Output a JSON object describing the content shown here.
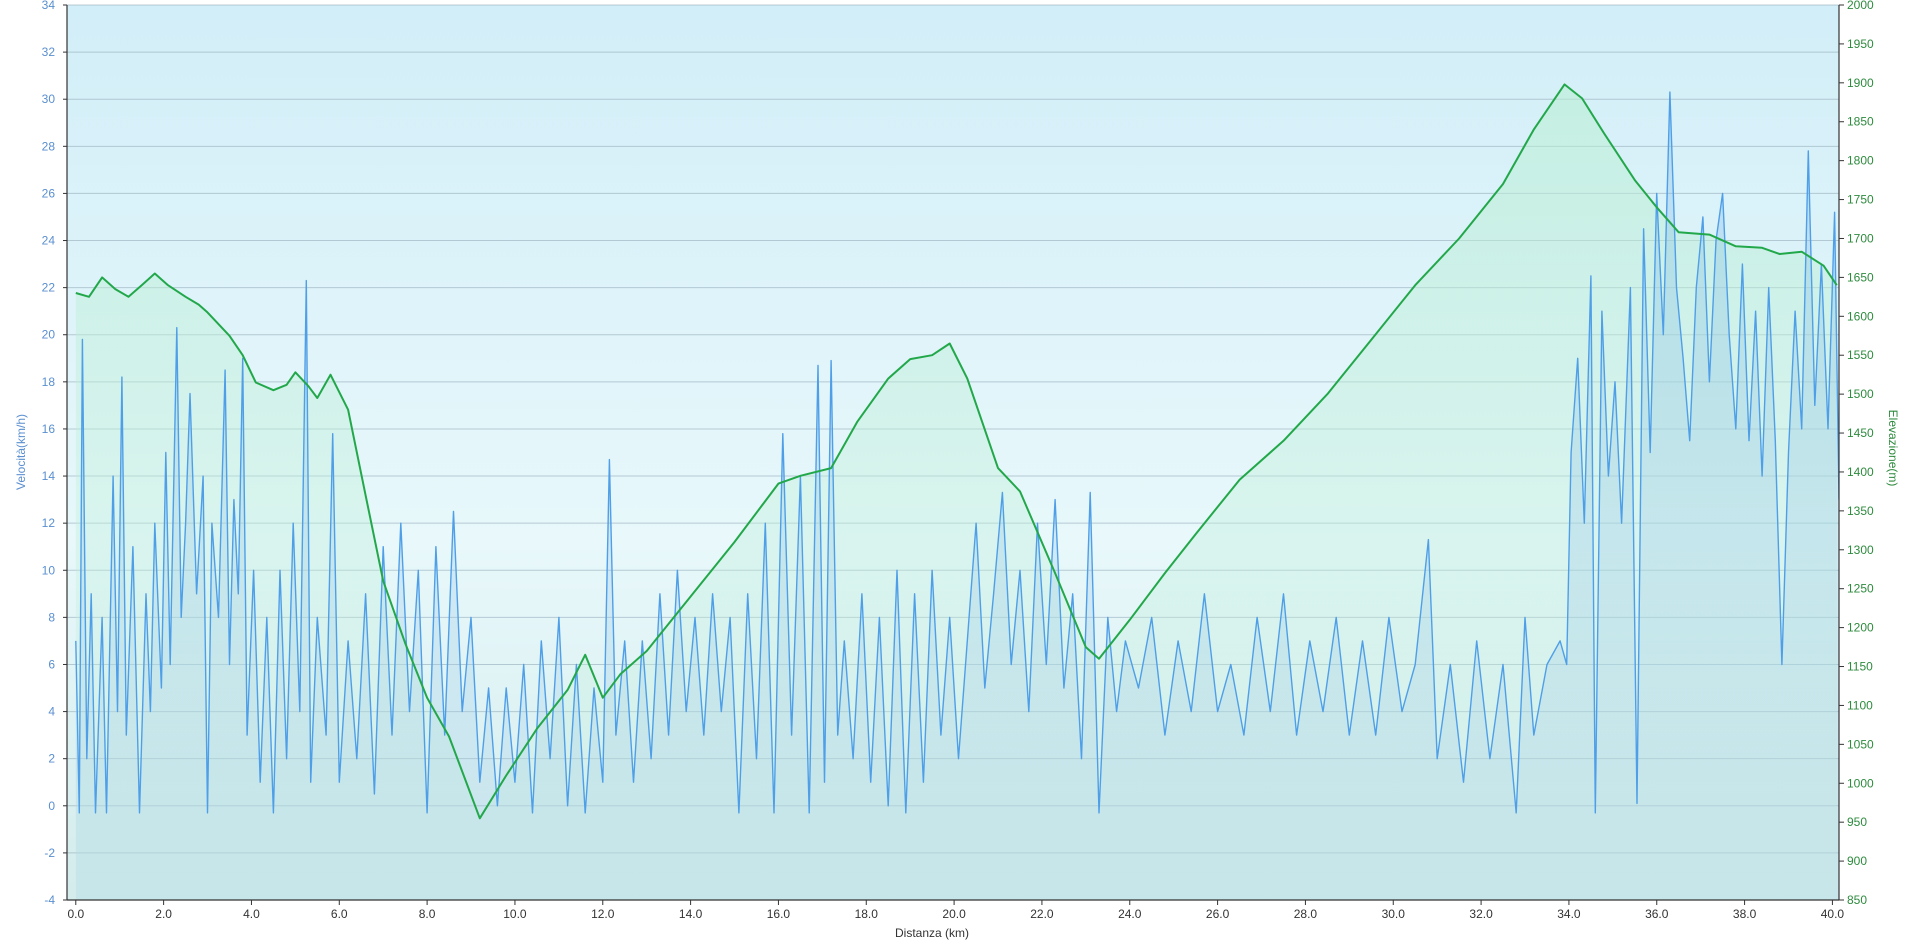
{
  "chart_data": {
    "type": "line",
    "xlabel": "Distanza  (km)",
    "ylabel_left": "Velocità(km/h)",
    "ylabel_right": "Elevazione(m)",
    "xlim": [
      -0.2,
      40.15
    ],
    "ylim_left": [
      -4,
      34
    ],
    "ylim_right": [
      850,
      2000
    ],
    "x_ticks": [
      0,
      2,
      4,
      6,
      8,
      10,
      12,
      14,
      16,
      18,
      20,
      22,
      24,
      26,
      28,
      30,
      32,
      34,
      36,
      38,
      40
    ],
    "y_left_ticks": [
      -4,
      -2,
      0,
      2,
      4,
      6,
      8,
      10,
      12,
      14,
      16,
      18,
      20,
      22,
      24,
      26,
      28,
      30,
      32,
      34
    ],
    "y_right_ticks": [
      850,
      900,
      950,
      1000,
      1050,
      1100,
      1150,
      1200,
      1250,
      1300,
      1350,
      1400,
      1450,
      1500,
      1550,
      1600,
      1650,
      1700,
      1750,
      1800,
      1850,
      1900,
      1950,
      2000
    ],
    "grid": true,
    "colors": {
      "speed": "#4f9fe8",
      "elevation": "#22a84a",
      "left_axis_text": "#5a8fd0",
      "right_axis_text": "#2e8b3e",
      "grid": "#9fb6c2",
      "background_top": "#d2eef8",
      "background_bottom": "#d4ecec"
    },
    "series": [
      {
        "axis": "right",
        "points": [
          [
            0,
            1630
          ],
          [
            0.3,
            1625
          ],
          [
            0.6,
            1650
          ],
          [
            0.9,
            1635
          ],
          [
            1.2,
            1625
          ],
          [
            1.5,
            1640
          ],
          [
            1.8,
            1655
          ],
          [
            2.1,
            1640
          ],
          [
            2.5,
            1625
          ],
          [
            2.8,
            1615
          ],
          [
            3.0,
            1605
          ],
          [
            3.5,
            1575
          ],
          [
            3.8,
            1550
          ],
          [
            4.1,
            1515
          ],
          [
            4.5,
            1505
          ],
          [
            4.8,
            1512
          ],
          [
            5.0,
            1528
          ],
          [
            5.3,
            1510
          ],
          [
            5.5,
            1495
          ],
          [
            5.8,
            1525
          ],
          [
            6.2,
            1480
          ],
          [
            6.6,
            1370
          ],
          [
            7.0,
            1260
          ],
          [
            7.5,
            1180
          ],
          [
            8.0,
            1110
          ],
          [
            8.5,
            1060
          ],
          [
            9.2,
            955
          ],
          [
            9.8,
            1010
          ],
          [
            10.5,
            1070
          ],
          [
            11.2,
            1120
          ],
          [
            11.6,
            1165
          ],
          [
            12.0,
            1110
          ],
          [
            12.4,
            1140
          ],
          [
            13.0,
            1170
          ],
          [
            14.0,
            1240
          ],
          [
            15.0,
            1310
          ],
          [
            16.0,
            1385
          ],
          [
            16.5,
            1395
          ],
          [
            17.2,
            1405
          ],
          [
            17.8,
            1465
          ],
          [
            18.5,
            1520
          ],
          [
            19.0,
            1545
          ],
          [
            19.5,
            1550
          ],
          [
            19.9,
            1565
          ],
          [
            20.3,
            1520
          ],
          [
            21.0,
            1405
          ],
          [
            21.5,
            1375
          ],
          [
            22.3,
            1270
          ],
          [
            23.0,
            1175
          ],
          [
            23.3,
            1160
          ],
          [
            24.0,
            1210
          ],
          [
            24.8,
            1270
          ],
          [
            25.5,
            1320
          ],
          [
            26.5,
            1390
          ],
          [
            27.5,
            1440
          ],
          [
            28.5,
            1500
          ],
          [
            29.5,
            1570
          ],
          [
            30.5,
            1640
          ],
          [
            31.5,
            1700
          ],
          [
            32.5,
            1770
          ],
          [
            33.2,
            1840
          ],
          [
            33.9,
            1898
          ],
          [
            34.3,
            1880
          ],
          [
            34.8,
            1835
          ],
          [
            35.5,
            1775
          ],
          [
            36.0,
            1740
          ],
          [
            36.5,
            1708
          ],
          [
            37.2,
            1705
          ],
          [
            37.8,
            1690
          ],
          [
            38.4,
            1688
          ],
          [
            38.8,
            1680
          ],
          [
            39.3,
            1683
          ],
          [
            39.8,
            1665
          ],
          [
            40.1,
            1640
          ]
        ]
      },
      {
        "axis": "left",
        "points": [
          [
            0,
            7
          ],
          [
            0.08,
            -0.3
          ],
          [
            0.15,
            19.8
          ],
          [
            0.25,
            2
          ],
          [
            0.35,
            9
          ],
          [
            0.45,
            -0.3
          ],
          [
            0.6,
            8
          ],
          [
            0.7,
            -0.3
          ],
          [
            0.85,
            14
          ],
          [
            0.95,
            4
          ],
          [
            1.05,
            18.2
          ],
          [
            1.15,
            3
          ],
          [
            1.3,
            11
          ],
          [
            1.45,
            -0.3
          ],
          [
            1.6,
            9
          ],
          [
            1.7,
            4
          ],
          [
            1.8,
            12
          ],
          [
            1.95,
            5
          ],
          [
            2.05,
            15
          ],
          [
            2.15,
            6
          ],
          [
            2.3,
            20.3
          ],
          [
            2.4,
            8
          ],
          [
            2.5,
            12
          ],
          [
            2.6,
            17.5
          ],
          [
            2.75,
            9
          ],
          [
            2.9,
            14
          ],
          [
            3.0,
            -0.3
          ],
          [
            3.1,
            12
          ],
          [
            3.25,
            8
          ],
          [
            3.4,
            18.5
          ],
          [
            3.5,
            6
          ],
          [
            3.6,
            13
          ],
          [
            3.7,
            9
          ],
          [
            3.8,
            19
          ],
          [
            3.9,
            3
          ],
          [
            4.05,
            10
          ],
          [
            4.2,
            1
          ],
          [
            4.35,
            8
          ],
          [
            4.5,
            -0.3
          ],
          [
            4.65,
            10
          ],
          [
            4.8,
            2
          ],
          [
            4.95,
            12
          ],
          [
            5.1,
            4
          ],
          [
            5.25,
            22.3
          ],
          [
            5.35,
            1
          ],
          [
            5.5,
            8
          ],
          [
            5.7,
            3
          ],
          [
            5.85,
            15.8
          ],
          [
            6.0,
            1
          ],
          [
            6.2,
            7
          ],
          [
            6.4,
            2
          ],
          [
            6.6,
            9
          ],
          [
            6.8,
            0.5
          ],
          [
            7.0,
            11
          ],
          [
            7.2,
            3
          ],
          [
            7.4,
            12
          ],
          [
            7.6,
            4
          ],
          [
            7.8,
            10
          ],
          [
            8.0,
            -0.3
          ],
          [
            8.2,
            11
          ],
          [
            8.4,
            3
          ],
          [
            8.6,
            12.5
          ],
          [
            8.8,
            4
          ],
          [
            9.0,
            8
          ],
          [
            9.2,
            1
          ],
          [
            9.4,
            5
          ],
          [
            9.6,
            0
          ],
          [
            9.8,
            5
          ],
          [
            10.0,
            1
          ],
          [
            10.2,
            6
          ],
          [
            10.4,
            -0.3
          ],
          [
            10.6,
            7
          ],
          [
            10.8,
            2
          ],
          [
            11.0,
            8
          ],
          [
            11.2,
            0
          ],
          [
            11.4,
            6
          ],
          [
            11.6,
            -0.3
          ],
          [
            11.8,
            5
          ],
          [
            12.0,
            1
          ],
          [
            12.15,
            14.7
          ],
          [
            12.3,
            3
          ],
          [
            12.5,
            7
          ],
          [
            12.7,
            1
          ],
          [
            12.9,
            7
          ],
          [
            13.1,
            2
          ],
          [
            13.3,
            9
          ],
          [
            13.5,
            3
          ],
          [
            13.7,
            10
          ],
          [
            13.9,
            4
          ],
          [
            14.1,
            8
          ],
          [
            14.3,
            3
          ],
          [
            14.5,
            9
          ],
          [
            14.7,
            4
          ],
          [
            14.9,
            8
          ],
          [
            15.1,
            -0.3
          ],
          [
            15.3,
            9
          ],
          [
            15.5,
            2
          ],
          [
            15.7,
            12
          ],
          [
            15.9,
            -0.3
          ],
          [
            16.1,
            15.8
          ],
          [
            16.3,
            3
          ],
          [
            16.5,
            14
          ],
          [
            16.7,
            -0.3
          ],
          [
            16.9,
            18.7
          ],
          [
            17.05,
            1
          ],
          [
            17.2,
            18.9
          ],
          [
            17.35,
            3
          ],
          [
            17.5,
            7
          ],
          [
            17.7,
            2
          ],
          [
            17.9,
            9
          ],
          [
            18.1,
            1
          ],
          [
            18.3,
            8
          ],
          [
            18.5,
            0
          ],
          [
            18.7,
            10
          ],
          [
            18.9,
            -0.3
          ],
          [
            19.1,
            9
          ],
          [
            19.3,
            1
          ],
          [
            19.5,
            10
          ],
          [
            19.7,
            3
          ],
          [
            19.9,
            8
          ],
          [
            20.1,
            2
          ],
          [
            20.3,
            7
          ],
          [
            20.5,
            12
          ],
          [
            20.7,
            5
          ],
          [
            20.9,
            9
          ],
          [
            21.1,
            13.3
          ],
          [
            21.3,
            6
          ],
          [
            21.5,
            10
          ],
          [
            21.7,
            4
          ],
          [
            21.9,
            12
          ],
          [
            22.1,
            6
          ],
          [
            22.3,
            13
          ],
          [
            22.5,
            5
          ],
          [
            22.7,
            9
          ],
          [
            22.9,
            2
          ],
          [
            23.1,
            13.3
          ],
          [
            23.3,
            -0.3
          ],
          [
            23.5,
            8
          ],
          [
            23.7,
            4
          ],
          [
            23.9,
            7
          ],
          [
            24.2,
            5
          ],
          [
            24.5,
            8
          ],
          [
            24.8,
            3
          ],
          [
            25.1,
            7
          ],
          [
            25.4,
            4
          ],
          [
            25.7,
            9
          ],
          [
            26.0,
            4
          ],
          [
            26.3,
            6
          ],
          [
            26.6,
            3
          ],
          [
            26.9,
            8
          ],
          [
            27.2,
            4
          ],
          [
            27.5,
            9
          ],
          [
            27.8,
            3
          ],
          [
            28.1,
            7
          ],
          [
            28.4,
            4
          ],
          [
            28.7,
            8
          ],
          [
            29.0,
            3
          ],
          [
            29.3,
            7
          ],
          [
            29.6,
            3
          ],
          [
            29.9,
            8
          ],
          [
            30.2,
            4
          ],
          [
            30.5,
            6
          ],
          [
            30.8,
            11.3
          ],
          [
            31.0,
            2
          ],
          [
            31.3,
            6
          ],
          [
            31.6,
            1
          ],
          [
            31.9,
            7
          ],
          [
            32.2,
            2
          ],
          [
            32.5,
            6
          ],
          [
            32.8,
            -0.3
          ],
          [
            33.0,
            8
          ],
          [
            33.2,
            3
          ],
          [
            33.5,
            6
          ],
          [
            33.8,
            7
          ],
          [
            33.95,
            6
          ],
          [
            34.05,
            15
          ],
          [
            34.2,
            19
          ],
          [
            34.35,
            12
          ],
          [
            34.5,
            22.5
          ],
          [
            34.6,
            -0.3
          ],
          [
            34.75,
            21
          ],
          [
            34.9,
            14
          ],
          [
            35.05,
            18
          ],
          [
            35.2,
            12
          ],
          [
            35.4,
            22
          ],
          [
            35.55,
            0.1
          ],
          [
            35.7,
            24.5
          ],
          [
            35.85,
            15
          ],
          [
            36.0,
            26
          ],
          [
            36.15,
            20
          ],
          [
            36.3,
            30.3
          ],
          [
            36.45,
            22
          ],
          [
            36.6,
            19
          ],
          [
            36.75,
            15.5
          ],
          [
            36.9,
            22
          ],
          [
            37.05,
            25
          ],
          [
            37.2,
            18
          ],
          [
            37.35,
            24
          ],
          [
            37.5,
            26
          ],
          [
            37.65,
            20
          ],
          [
            37.8,
            16
          ],
          [
            37.95,
            23
          ],
          [
            38.1,
            15.5
          ],
          [
            38.25,
            21
          ],
          [
            38.4,
            14
          ],
          [
            38.55,
            22
          ],
          [
            38.7,
            15.5
          ],
          [
            38.85,
            6
          ],
          [
            39.0,
            15
          ],
          [
            39.15,
            21
          ],
          [
            39.3,
            16
          ],
          [
            39.45,
            27.8
          ],
          [
            39.6,
            17
          ],
          [
            39.75,
            23
          ],
          [
            39.9,
            16
          ],
          [
            40.05,
            25.2
          ],
          [
            40.15,
            13
          ]
        ]
      }
    ]
  }
}
